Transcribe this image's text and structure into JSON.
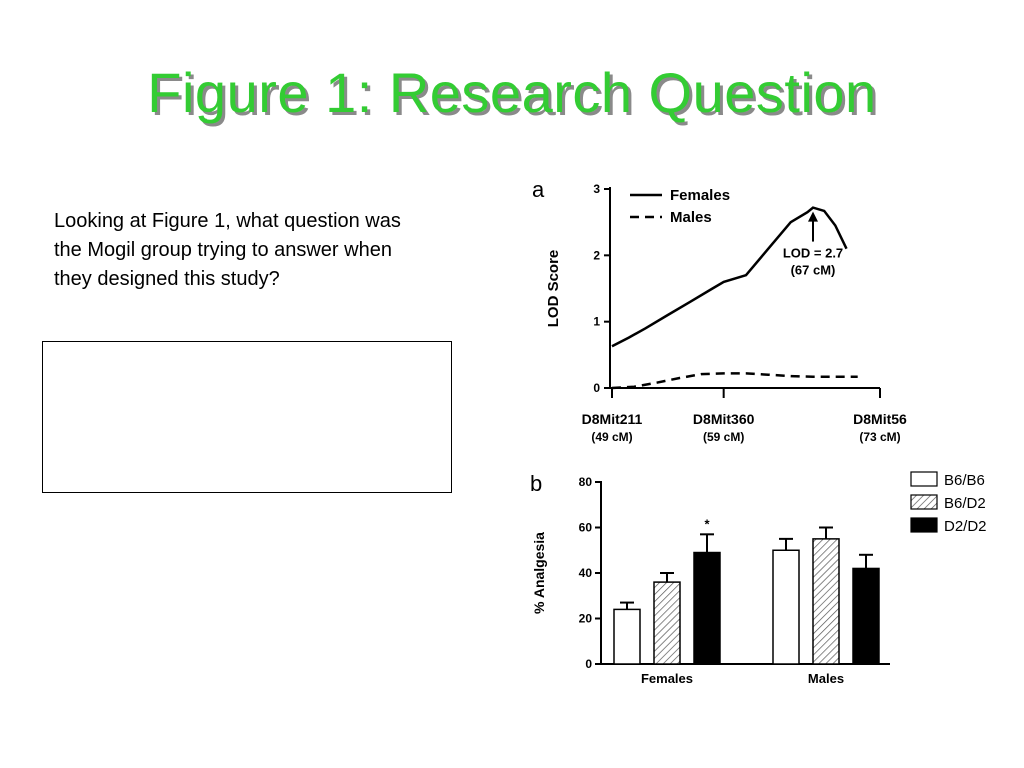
{
  "slide": {
    "title": "Figure 1: Research Question",
    "prompt": "Looking at Figure 1, what question was the Mogil group trying to answer when they designed this study?",
    "answer_value": ""
  },
  "chart_data": [
    {
      "panel": "a",
      "type": "line",
      "xlabel": "",
      "ylabel": "LOD Score",
      "ylim": [
        0,
        3
      ],
      "xlim": [
        49,
        73
      ],
      "yticks": [
        0,
        1,
        2,
        3
      ],
      "markers": [
        {
          "name": "D8Mit211",
          "pos": "(49 cM)",
          "x": 49
        },
        {
          "name": "D8Mit360",
          "pos": "(59 cM)",
          "x": 59
        },
        {
          "name": "D8Mit56",
          "pos": "(73 cM)",
          "x": 73
        }
      ],
      "series": [
        {
          "name": "Females",
          "style": "solid",
          "x": [
            49,
            50.5,
            52,
            54,
            56,
            58,
            59,
            61,
            63,
            65,
            66.5,
            67,
            68,
            69,
            70
          ],
          "y": [
            0.63,
            0.76,
            0.9,
            1.1,
            1.3,
            1.5,
            1.6,
            1.7,
            2.1,
            2.5,
            2.65,
            2.72,
            2.67,
            2.45,
            2.1
          ]
        },
        {
          "name": "Males",
          "style": "dashed",
          "x": [
            49,
            51,
            53,
            55,
            57,
            59,
            61,
            63,
            65,
            67,
            69,
            71
          ],
          "y": [
            0,
            0.02,
            0.08,
            0.15,
            0.21,
            0.22,
            0.22,
            0.2,
            0.18,
            0.17,
            0.17,
            0.17
          ]
        }
      ],
      "annotation": {
        "line1": "LOD = 2.7",
        "line2": "(67 cM)",
        "x": 67,
        "y": 2.72
      },
      "legend": "top-left"
    },
    {
      "panel": "b",
      "type": "bar",
      "categories": [
        "Females",
        "Males"
      ],
      "xlabel": "",
      "ylabel": "% Analgesia",
      "ylim": [
        0,
        80
      ],
      "yticks": [
        0,
        20,
        40,
        60,
        80
      ],
      "series": [
        {
          "name": "B6/B6",
          "fill": "#ffffff",
          "values": [
            24,
            50
          ],
          "errors": [
            3,
            5
          ]
        },
        {
          "name": "B6/D2",
          "fill": "hatch",
          "values": [
            36,
            55
          ],
          "errors": [
            4,
            5
          ]
        },
        {
          "name": "D2/D2",
          "fill": "#000000",
          "values": [
            49,
            42
          ],
          "errors": [
            8,
            6
          ]
        }
      ],
      "significance": {
        "category": 0,
        "series": 2,
        "label": "*"
      },
      "legend": "top-right"
    }
  ]
}
